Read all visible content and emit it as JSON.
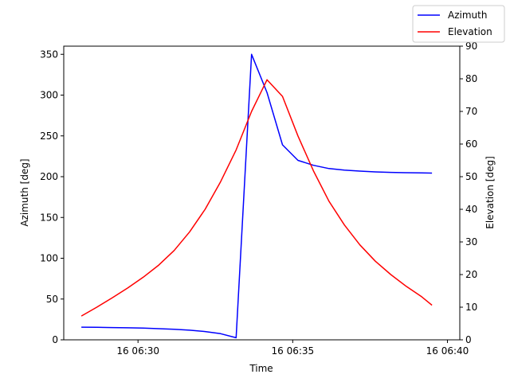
{
  "chart_data": {
    "type": "line",
    "xlabel": "Time",
    "ylabel_left": "Azimuth [deg]",
    "ylabel_right": "Elevation [deg]",
    "x_ticks": [
      "16 06:30",
      "16 06:35",
      "16 06:40"
    ],
    "x_tick_minutes": [
      30,
      35,
      40
    ],
    "xlim_minutes": [
      27.6,
      40.4
    ],
    "ylim_left": [
      0,
      360
    ],
    "ylim_right": [
      0,
      90
    ],
    "y_ticks_left": [
      0,
      50,
      100,
      150,
      200,
      250,
      300,
      350
    ],
    "y_ticks_right": [
      0,
      10,
      20,
      30,
      40,
      50,
      60,
      70,
      80,
      90
    ],
    "grid": false,
    "legend_position": "top-right outside",
    "series": [
      {
        "name": "Azimuth",
        "axis": "left",
        "color": "#0000ff",
        "x": [
          28.17,
          28.67,
          29.17,
          29.67,
          30.17,
          30.67,
          31.17,
          31.67,
          32.17,
          32.67,
          33.17,
          33.67,
          34.17,
          34.67,
          35.17,
          35.67,
          36.17,
          36.67,
          37.17,
          37.67,
          38.17,
          38.67,
          39.17,
          39.5
        ],
        "y": [
          15.5,
          15.3,
          15.0,
          14.7,
          14.3,
          13.7,
          12.9,
          11.8,
          10.1,
          7.5,
          2.5,
          350,
          303,
          239,
          220,
          214,
          210,
          208,
          206.8,
          205.9,
          205.3,
          204.9,
          204.6,
          204.4
        ]
      },
      {
        "name": "Elevation",
        "axis": "right",
        "color": "#ff0000",
        "x": [
          28.17,
          28.67,
          29.17,
          29.67,
          30.17,
          30.67,
          31.17,
          31.67,
          32.17,
          32.67,
          33.17,
          33.67,
          34.17,
          34.67,
          35.17,
          35.67,
          36.17,
          36.67,
          37.17,
          37.67,
          38.17,
          38.67,
          39.17,
          39.5
        ],
        "y": [
          7.3,
          10.0,
          12.9,
          15.9,
          19.2,
          22.9,
          27.4,
          33.1,
          40.0,
          48.5,
          58.2,
          70.0,
          79.7,
          74.6,
          62.5,
          51.8,
          42.5,
          35.2,
          29.1,
          24.1,
          20.0,
          16.4,
          13.2,
          10.6
        ]
      }
    ]
  }
}
